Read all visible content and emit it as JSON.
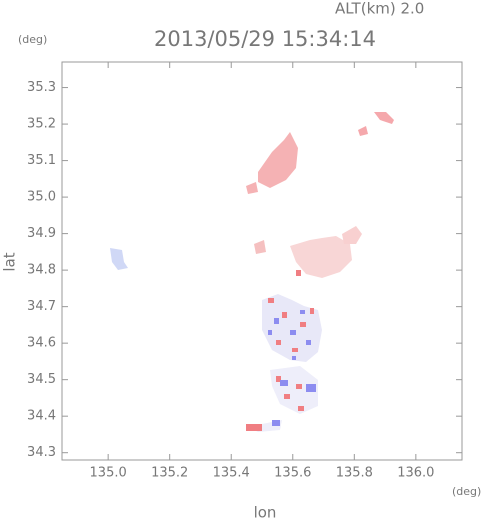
{
  "chart_data": {
    "type": "scatter",
    "title": "2013/05/29 15:34:14",
    "subtitle": "ALT(km) 2.0",
    "x_label": "lon",
    "y_label": "lat",
    "x_unit": "(deg)",
    "y_unit": "(deg)",
    "xlim": [
      134.85,
      136.15
    ],
    "ylim": [
      34.28,
      35.37
    ],
    "xticks": [
      {
        "value": 135.0,
        "label": "135.0"
      },
      135.2,
      135.4,
      135.6,
      135.8,
      {
        "value": 136.0,
        "label": "136.0"
      }
    ],
    "yticks": [
      34.3,
      34.4,
      34.5,
      34.6,
      34.7,
      34.8,
      34.9,
      {
        "value": 35.0,
        "label": "35.0"
      },
      35.1,
      35.2,
      35.3
    ]
  }
}
